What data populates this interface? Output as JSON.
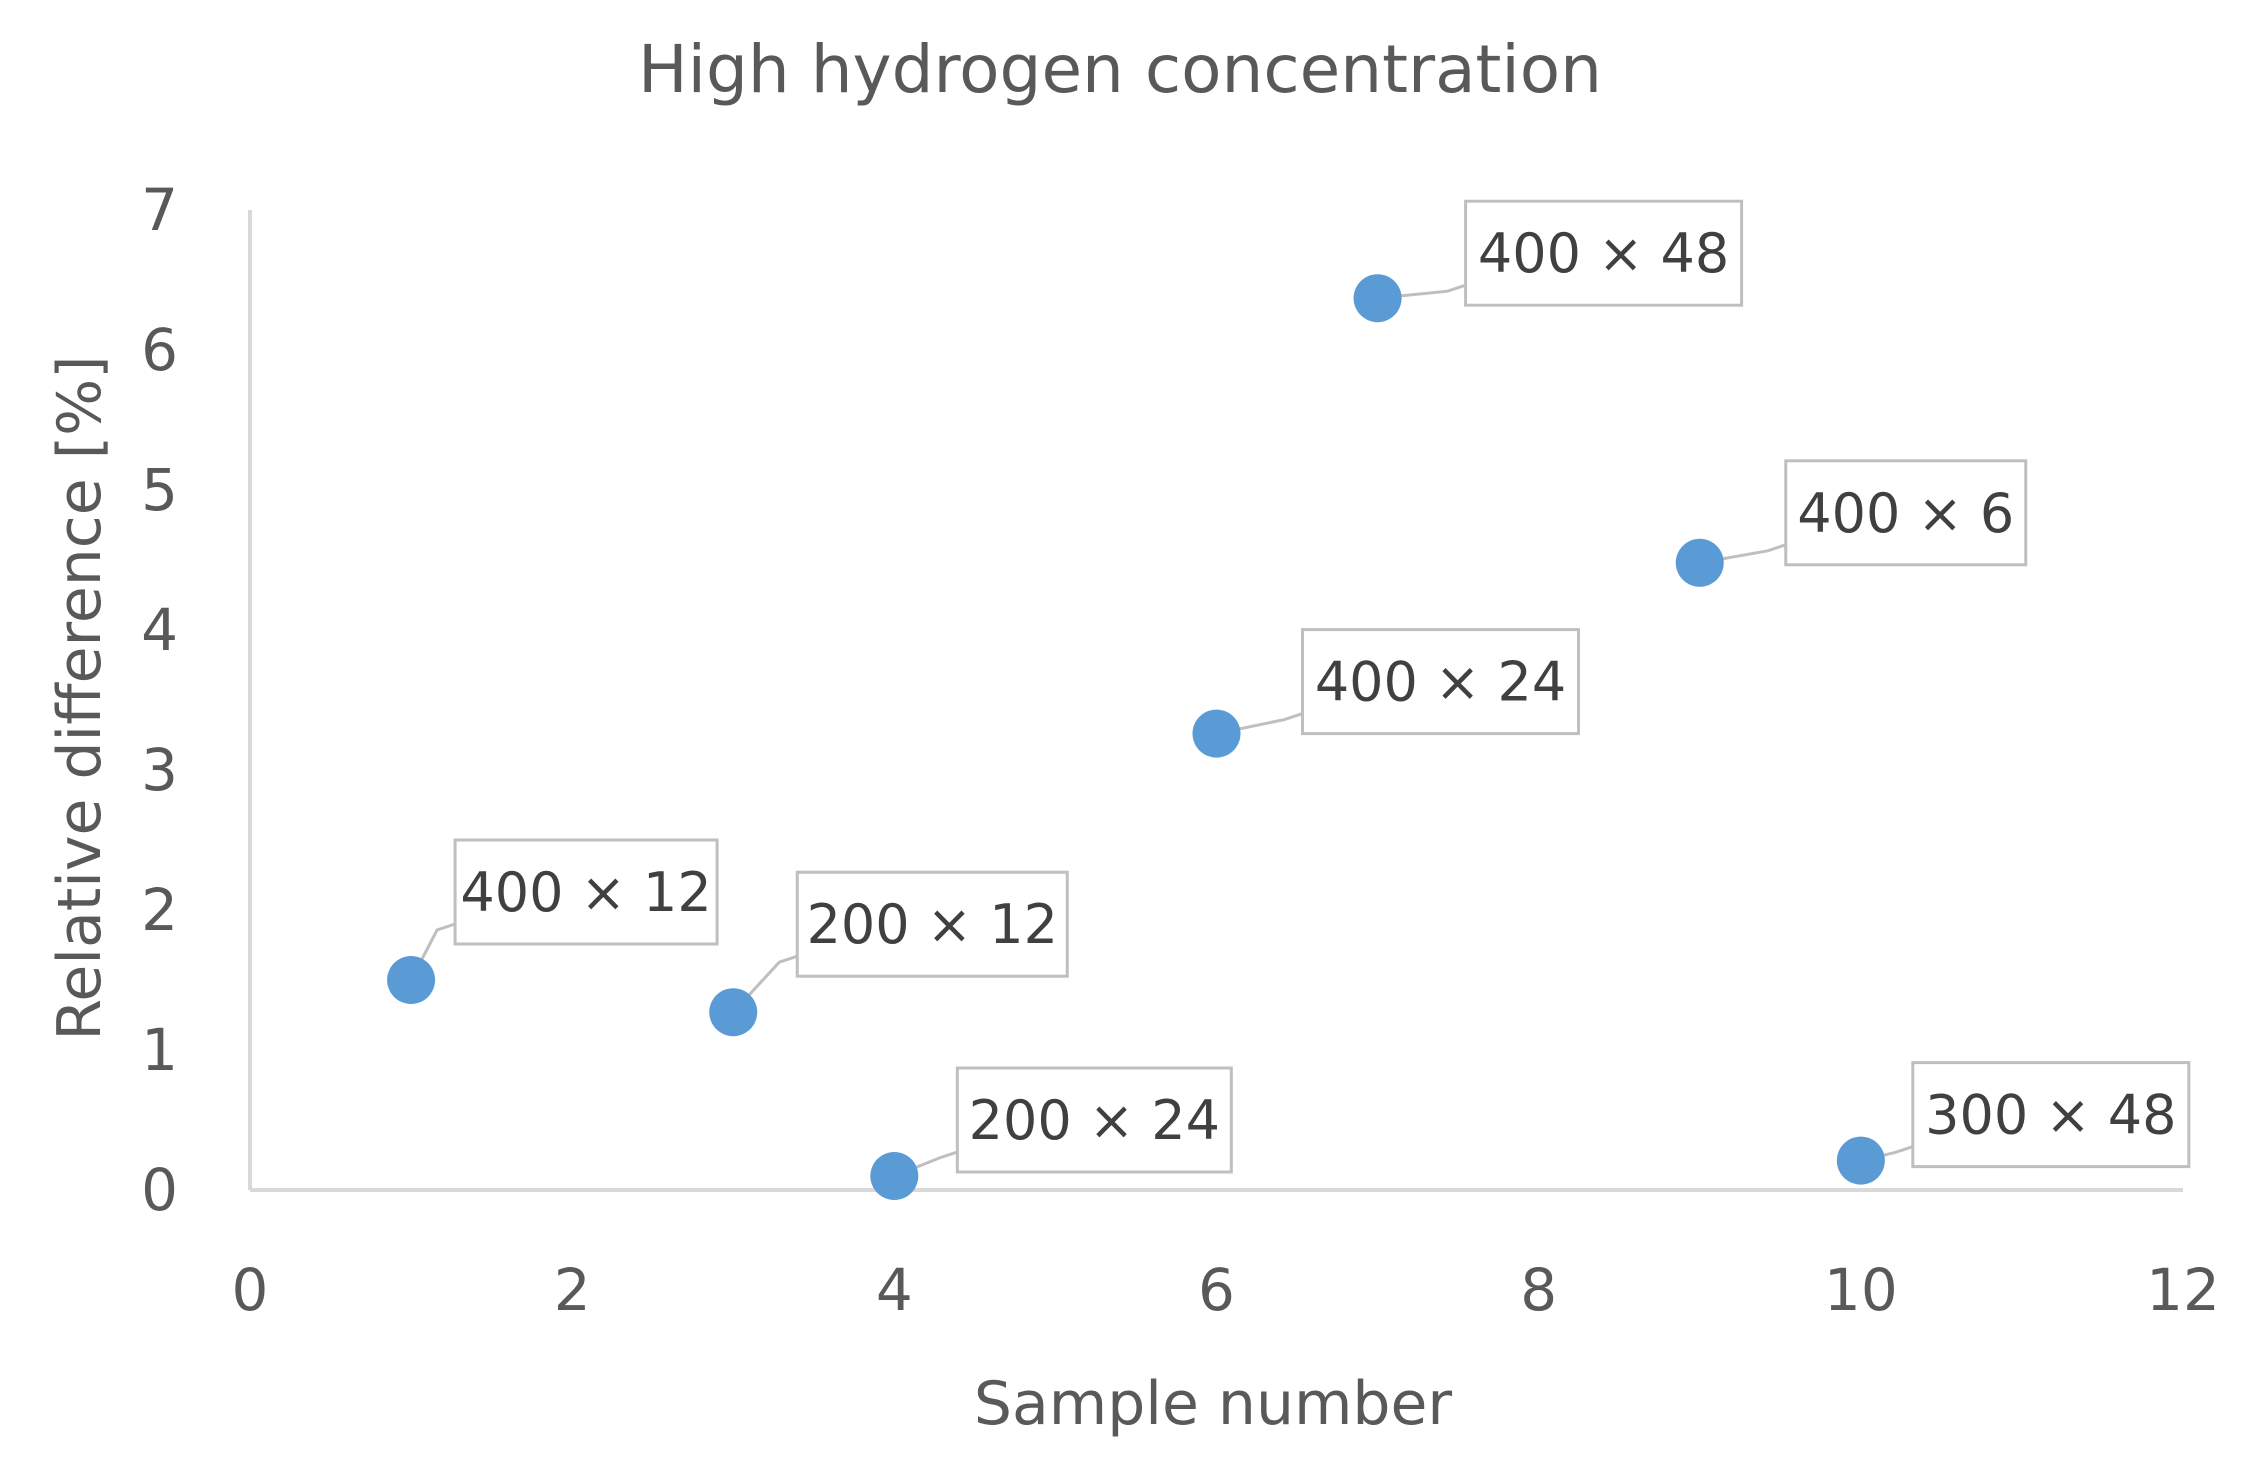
{
  "chart_data": {
    "type": "scatter",
    "title": "High hydrogen concentration",
    "xlabel": "Sample number",
    "ylabel": "Relative difference [%]",
    "xlim": [
      0,
      12
    ],
    "ylim": [
      0,
      7
    ],
    "xticks": [
      0,
      2,
      4,
      6,
      8,
      10,
      12
    ],
    "yticks": [
      0,
      1,
      2,
      3,
      4,
      5,
      6,
      7
    ],
    "grid": false,
    "legend": "none",
    "marker_color": "#5b9bd5",
    "points": [
      {
        "x": 1,
        "y": 1.5,
        "label": "400 × 12"
      },
      {
        "x": 3,
        "y": 1.27,
        "label": "200 × 12"
      },
      {
        "x": 4,
        "y": 0.1,
        "label": "200 × 24"
      },
      {
        "x": 6,
        "y": 3.26,
        "label": "400 × 24"
      },
      {
        "x": 7,
        "y": 6.37,
        "label": "400 × 48"
      },
      {
        "x": 9,
        "y": 4.48,
        "label": "400 × 6"
      },
      {
        "x": 10,
        "y": 0.21,
        "label": "300 × 48"
      }
    ]
  }
}
